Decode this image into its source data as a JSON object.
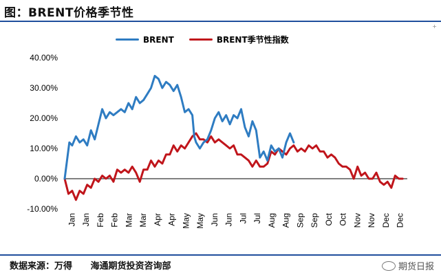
{
  "header": {
    "title": "图：BRENT价格季节性"
  },
  "footer": {
    "source": "数据来源：万得",
    "org": "海通期货投资咨询部"
  },
  "watermark": {
    "text": "期货日报"
  },
  "colors": {
    "brent": "#2e7cc2",
    "seasonal": "#c0151b",
    "rule": "#1f4e9c"
  },
  "chart_data": {
    "type": "line",
    "ylim": [
      -10,
      40
    ],
    "yticks": [
      "40.00%",
      "30.00%",
      "20.00%",
      "10.00%",
      "0.00%",
      "-10.00%"
    ],
    "ytick_values": [
      40,
      30,
      20,
      10,
      0,
      -10
    ],
    "xticks": [
      "Jan",
      "Jan",
      "Feb",
      "Feb",
      "Mar",
      "Mar",
      "Apr",
      "Apr",
      "May",
      "May",
      "Jun",
      "Jun",
      "Jul",
      "Jul",
      "Aug",
      "Aug",
      "Sep",
      "Sep",
      "Oct",
      "Oct",
      "Nov",
      "Nov",
      "Dec",
      "Dec"
    ],
    "xlim": [
      0,
      365
    ],
    "series": [
      {
        "name": "BRENT",
        "color": "#2e7cc2",
        "x": [
          0,
          5,
          8,
          12,
          16,
          20,
          24,
          28,
          32,
          36,
          40,
          44,
          48,
          52,
          56,
          60,
          64,
          68,
          72,
          76,
          80,
          84,
          88,
          92,
          96,
          100,
          104,
          108,
          112,
          116,
          120,
          124,
          128,
          132,
          136,
          138,
          140,
          144,
          148,
          152,
          156,
          160,
          164,
          168,
          172,
          176,
          180,
          184,
          188,
          192,
          196,
          200,
          204,
          208,
          212,
          216,
          220,
          224,
          228,
          232,
          236,
          240,
          244
        ],
        "y": [
          0,
          12,
          11,
          14,
          12,
          13,
          11,
          16,
          13,
          18,
          23,
          20,
          22,
          21,
          22,
          23,
          22,
          25,
          23,
          27,
          25,
          26,
          28,
          30,
          34,
          33,
          30,
          32,
          31,
          29,
          31,
          27,
          22,
          23,
          21,
          14,
          12,
          10,
          12,
          13,
          16,
          20,
          22,
          19,
          21,
          18,
          21,
          20,
          23,
          17,
          14,
          19,
          16,
          7,
          9,
          6,
          11,
          9,
          10,
          7,
          12,
          15,
          12
        ]
      },
      {
        "name": "BRENT季节性指数",
        "color": "#c0151b",
        "x": [
          0,
          4,
          8,
          12,
          16,
          20,
          24,
          28,
          32,
          36,
          40,
          44,
          48,
          52,
          56,
          60,
          64,
          68,
          72,
          76,
          80,
          84,
          88,
          92,
          96,
          100,
          104,
          108,
          112,
          116,
          120,
          124,
          128,
          132,
          136,
          140,
          144,
          148,
          152,
          156,
          160,
          164,
          168,
          172,
          176,
          180,
          184,
          188,
          192,
          196,
          200,
          204,
          208,
          212,
          216,
          220,
          224,
          228,
          232,
          236,
          240,
          244,
          248,
          252,
          256,
          260,
          264,
          268,
          272,
          276,
          280,
          284,
          288,
          292,
          296,
          300,
          304,
          308,
          312,
          316,
          320,
          324,
          328,
          332,
          336,
          340,
          344,
          348,
          352,
          356,
          360
        ],
        "y": [
          0,
          -5,
          -4,
          -7,
          -4,
          -5,
          -2,
          -3,
          0,
          -1,
          1,
          0,
          1,
          -1,
          3,
          2,
          3,
          2,
          4,
          2,
          -1,
          3,
          3,
          6,
          4,
          6,
          5,
          8,
          8,
          11,
          9,
          11,
          10,
          12,
          14,
          15,
          13,
          13,
          12,
          14,
          12,
          13,
          12,
          11,
          10,
          11,
          8,
          8,
          7,
          6,
          4,
          6,
          4,
          4,
          5,
          9,
          8,
          10,
          9,
          8,
          10,
          11,
          9,
          10,
          9,
          11,
          10,
          11,
          9,
          9,
          7,
          8,
          7,
          5,
          4,
          4,
          3,
          0,
          4,
          1,
          2,
          0,
          0,
          2,
          -1,
          -2,
          -1,
          -3,
          1,
          0,
          0
        ]
      }
    ]
  }
}
